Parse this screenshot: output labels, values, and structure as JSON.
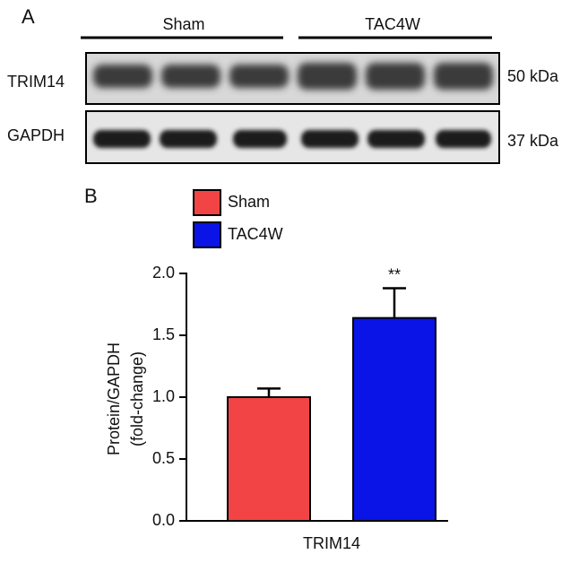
{
  "blot": {
    "panel_label": "A",
    "groups": [
      "Sham",
      "TAC4W"
    ],
    "rows": [
      {
        "label": "TRIM14",
        "size": "50 kDa"
      },
      {
        "label": "GAPDH",
        "size": "37 kDa"
      }
    ]
  },
  "chart_data": {
    "type": "bar",
    "panel_label": "B",
    "categories": [
      "TRIM14"
    ],
    "series": [
      {
        "name": "Sham",
        "color": "#f24444",
        "values": [
          1.0
        ],
        "errors": [
          0.07
        ]
      },
      {
        "name": "TAC4W",
        "color": "#0a14e6",
        "values": [
          1.64
        ],
        "errors": [
          0.24
        ],
        "annotations": [
          "**"
        ]
      }
    ],
    "ylabel": [
      "Protein/GAPDH",
      "(fold-change)"
    ],
    "ylim": [
      0,
      2
    ],
    "yticks": [
      {
        "value": 0,
        "label": "0.0"
      },
      {
        "value": 0.5,
        "label": "0.5"
      },
      {
        "value": 1,
        "label": "1.0"
      },
      {
        "value": 1.5,
        "label": "1.5"
      },
      {
        "value": 2,
        "label": "2.0"
      }
    ],
    "legend": "top-left",
    "grid": false
  }
}
